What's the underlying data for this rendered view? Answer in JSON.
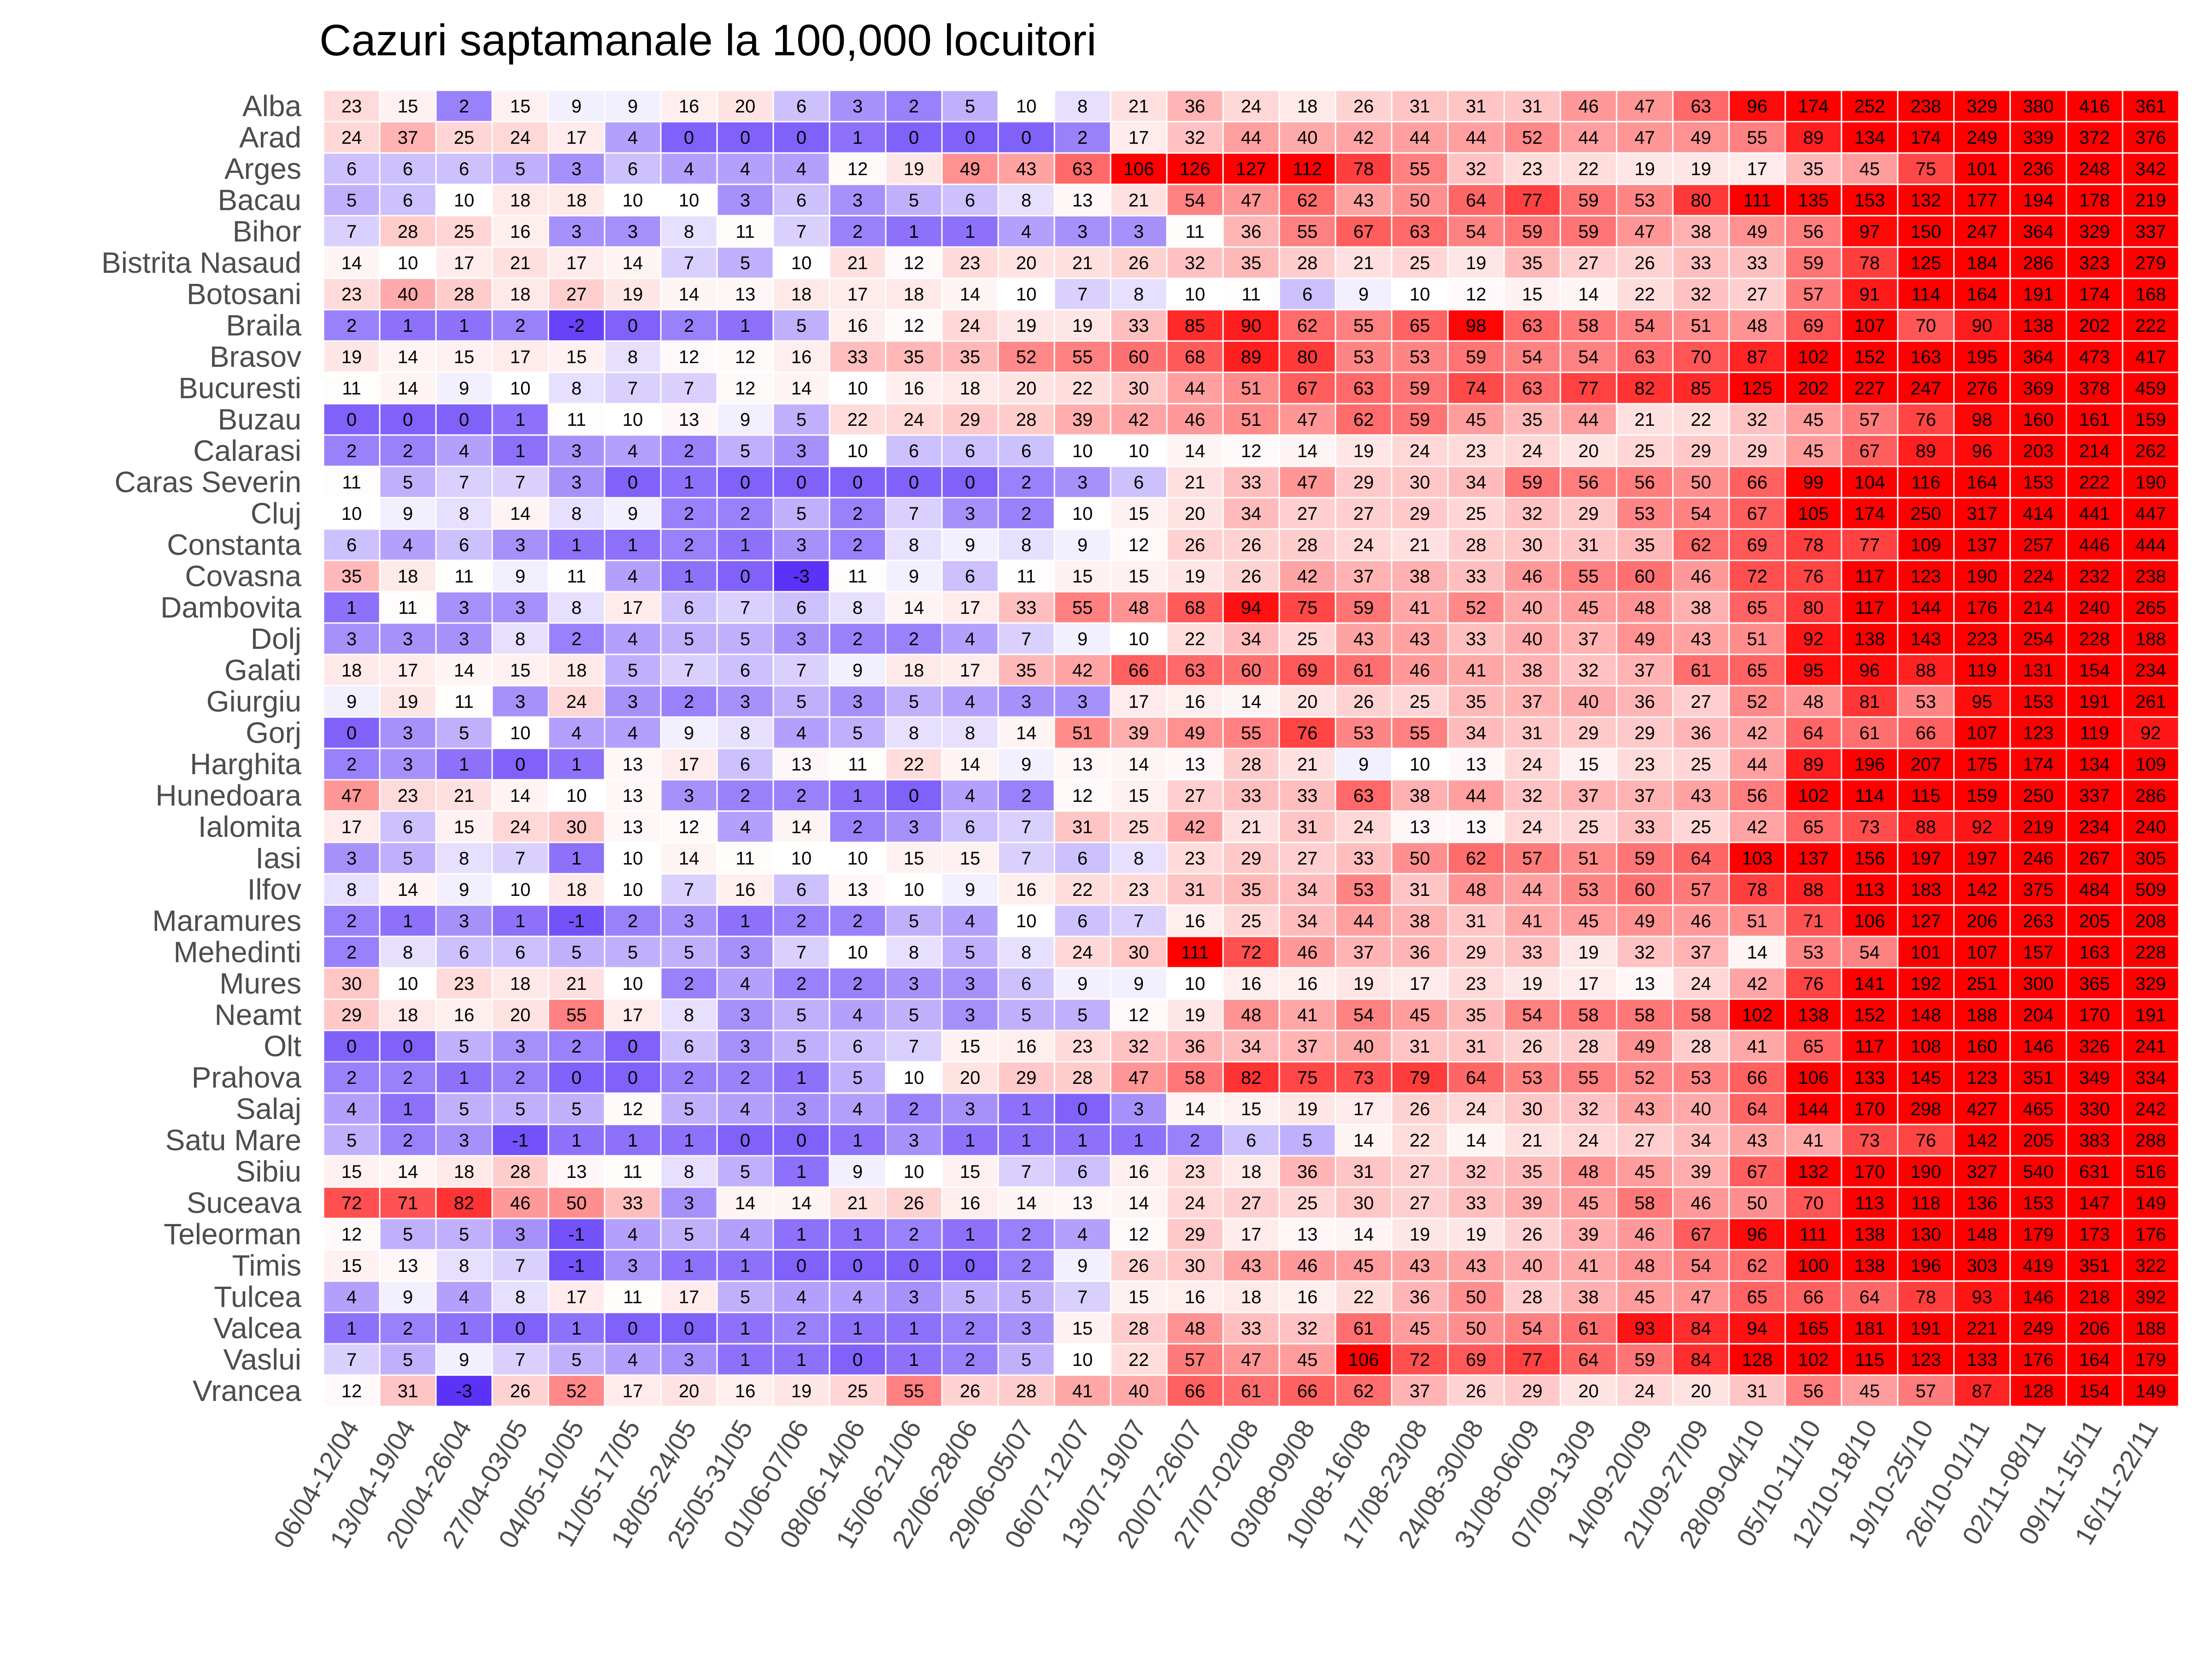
{
  "chart_data": {
    "type": "heatmap",
    "title": "Cazuri saptamanale la 100,000 locuitori",
    "colors": {
      "low": "#5a32f8",
      "mid": "#ffffff",
      "high": "#ff0000"
    },
    "color_scale": {
      "low": -3,
      "mid": 10,
      "high": 100
    },
    "rows": [
      "Alba",
      "Arad",
      "Arges",
      "Bacau",
      "Bihor",
      "Bistrita Nasaud",
      "Botosani",
      "Braila",
      "Brasov",
      "Bucuresti",
      "Buzau",
      "Calarasi",
      "Caras Severin",
      "Cluj",
      "Constanta",
      "Covasna",
      "Dambovita",
      "Dolj",
      "Galati",
      "Giurgiu",
      "Gorj",
      "Harghita",
      "Hunedoara",
      "Ialomita",
      "Iasi",
      "Ilfov",
      "Maramures",
      "Mehedinti",
      "Mures",
      "Neamt",
      "Olt",
      "Prahova",
      "Salaj",
      "Satu Mare",
      "Sibiu",
      "Suceava",
      "Teleorman",
      "Timis",
      "Tulcea",
      "Valcea",
      "Vaslui",
      "Vrancea"
    ],
    "columns": [
      "06/04-12/04",
      "13/04-19/04",
      "20/04-26/04",
      "27/04-03/05",
      "04/05-10/05",
      "11/05-17/05",
      "18/05-24/05",
      "25/05-31/05",
      "01/06-07/06",
      "08/06-14/06",
      "15/06-21/06",
      "22/06-28/06",
      "29/06-05/07",
      "06/07-12/07",
      "13/07-19/07",
      "20/07-26/07",
      "27/07-02/08",
      "03/08-09/08",
      "10/08-16/08",
      "17/08-23/08",
      "24/08-30/08",
      "31/08-06/09",
      "07/09-13/09",
      "14/09-20/09",
      "21/09-27/09",
      "28/09-04/10",
      "05/10-11/10",
      "12/10-18/10",
      "19/10-25/10",
      "26/10-01/11",
      "02/11-08/11",
      "09/11-15/11",
      "16/11-22/11"
    ],
    "values": [
      [
        23,
        15,
        2,
        15,
        9,
        9,
        16,
        20,
        6,
        3,
        2,
        5,
        10,
        8,
        21,
        36,
        24,
        18,
        26,
        31,
        31,
        31,
        46,
        47,
        63,
        96,
        174,
        252,
        238,
        329,
        380,
        416,
        361
      ],
      [
        24,
        37,
        25,
        24,
        17,
        4,
        0,
        0,
        0,
        1,
        0,
        0,
        0,
        2,
        17,
        32,
        44,
        40,
        42,
        44,
        44,
        52,
        44,
        47,
        49,
        55,
        89,
        134,
        174,
        249,
        339,
        372,
        376
      ],
      [
        6,
        6,
        6,
        5,
        3,
        6,
        4,
        4,
        4,
        12,
        19,
        49,
        43,
        63,
        106,
        126,
        127,
        112,
        78,
        55,
        32,
        23,
        22,
        19,
        19,
        17,
        35,
        45,
        75,
        101,
        236,
        248,
        342
      ],
      [
        5,
        6,
        10,
        18,
        18,
        10,
        10,
        3,
        6,
        3,
        5,
        6,
        8,
        13,
        21,
        54,
        47,
        62,
        43,
        50,
        64,
        77,
        59,
        53,
        80,
        111,
        135,
        153,
        132,
        177,
        194,
        178,
        219
      ],
      [
        7,
        28,
        25,
        16,
        3,
        3,
        8,
        11,
        7,
        2,
        1,
        1,
        4,
        3,
        3,
        11,
        36,
        55,
        67,
        63,
        54,
        59,
        59,
        47,
        38,
        49,
        56,
        97,
        150,
        247,
        364,
        329,
        337
      ],
      [
        14,
        10,
        17,
        21,
        17,
        14,
        7,
        5,
        10,
        21,
        12,
        23,
        20,
        21,
        26,
        32,
        35,
        28,
        21,
        25,
        19,
        35,
        27,
        26,
        33,
        33,
        59,
        78,
        125,
        184,
        286,
        323,
        279
      ],
      [
        23,
        40,
        28,
        18,
        27,
        19,
        14,
        13,
        18,
        17,
        18,
        14,
        10,
        7,
        8,
        10,
        11,
        6,
        9,
        10,
        12,
        15,
        14,
        22,
        32,
        27,
        57,
        91,
        114,
        164,
        191,
        174,
        168
      ],
      [
        2,
        1,
        1,
        2,
        -2,
        0,
        2,
        1,
        5,
        16,
        12,
        24,
        19,
        19,
        33,
        85,
        90,
        62,
        55,
        65,
        98,
        63,
        58,
        54,
        51,
        48,
        69,
        107,
        70,
        90,
        138,
        202,
        222
      ],
      [
        19,
        14,
        15,
        17,
        15,
        8,
        12,
        12,
        16,
        33,
        35,
        35,
        52,
        55,
        60,
        68,
        89,
        80,
        53,
        53,
        59,
        54,
        54,
        63,
        70,
        87,
        102,
        152,
        163,
        195,
        364,
        473,
        417
      ],
      [
        11,
        14,
        9,
        10,
        8,
        7,
        7,
        12,
        14,
        10,
        16,
        18,
        20,
        22,
        30,
        44,
        51,
        67,
        63,
        59,
        74,
        63,
        77,
        82,
        85,
        125,
        202,
        227,
        247,
        276,
        369,
        378,
        459
      ],
      [
        0,
        0,
        0,
        1,
        11,
        10,
        13,
        9,
        5,
        22,
        24,
        29,
        28,
        39,
        42,
        46,
        51,
        47,
        62,
        59,
        45,
        35,
        44,
        21,
        22,
        32,
        45,
        57,
        76,
        98,
        160,
        161,
        159
      ],
      [
        2,
        2,
        4,
        1,
        3,
        4,
        2,
        5,
        3,
        10,
        6,
        6,
        6,
        10,
        10,
        14,
        12,
        14,
        19,
        24,
        23,
        24,
        20,
        25,
        29,
        29,
        45,
        67,
        89,
        96,
        203,
        214,
        262
      ],
      [
        11,
        5,
        7,
        7,
        3,
        0,
        1,
        0,
        0,
        0,
        0,
        0,
        2,
        3,
        6,
        21,
        33,
        47,
        29,
        30,
        34,
        59,
        56,
        56,
        50,
        66,
        99,
        104,
        116,
        164,
        153,
        222,
        190
      ],
      [
        10,
        9,
        8,
        14,
        8,
        9,
        2,
        2,
        5,
        2,
        7,
        3,
        2,
        10,
        15,
        20,
        34,
        27,
        27,
        29,
        25,
        32,
        29,
        53,
        54,
        67,
        105,
        174,
        250,
        317,
        414,
        441,
        447
      ],
      [
        6,
        4,
        6,
        3,
        1,
        1,
        2,
        1,
        3,
        2,
        8,
        9,
        8,
        9,
        12,
        26,
        26,
        28,
        24,
        21,
        28,
        30,
        31,
        35,
        62,
        69,
        78,
        77,
        109,
        137,
        257,
        446,
        444
      ],
      [
        35,
        18,
        11,
        9,
        11,
        4,
        1,
        0,
        -3,
        11,
        9,
        6,
        11,
        15,
        15,
        19,
        26,
        42,
        37,
        38,
        33,
        46,
        55,
        60,
        46,
        72,
        76,
        117,
        123,
        190,
        224,
        232,
        238
      ],
      [
        1,
        11,
        3,
        3,
        8,
        17,
        6,
        7,
        6,
        8,
        14,
        17,
        33,
        55,
        48,
        68,
        94,
        75,
        59,
        41,
        52,
        40,
        45,
        48,
        38,
        65,
        80,
        117,
        144,
        176,
        214,
        240,
        265
      ],
      [
        3,
        3,
        3,
        8,
        2,
        4,
        5,
        5,
        3,
        2,
        2,
        4,
        7,
        9,
        10,
        22,
        34,
        25,
        43,
        43,
        33,
        40,
        37,
        49,
        43,
        51,
        92,
        138,
        143,
        223,
        254,
        228,
        188
      ],
      [
        18,
        17,
        14,
        15,
        18,
        5,
        7,
        6,
        7,
        9,
        18,
        17,
        35,
        42,
        66,
        63,
        60,
        69,
        61,
        46,
        41,
        38,
        32,
        37,
        61,
        65,
        95,
        96,
        88,
        119,
        131,
        154,
        234
      ],
      [
        9,
        19,
        11,
        3,
        24,
        3,
        2,
        3,
        5,
        3,
        5,
        4,
        3,
        3,
        17,
        16,
        14,
        20,
        26,
        25,
        35,
        37,
        40,
        36,
        27,
        52,
        48,
        81,
        53,
        95,
        153,
        191,
        261
      ],
      [
        0,
        3,
        5,
        10,
        4,
        4,
        9,
        8,
        4,
        5,
        8,
        8,
        14,
        51,
        39,
        49,
        55,
        76,
        53,
        55,
        34,
        31,
        29,
        29,
        36,
        42,
        64,
        61,
        66,
        107,
        123,
        119,
        92
      ],
      [
        2,
        3,
        1,
        0,
        1,
        13,
        17,
        6,
        13,
        11,
        22,
        14,
        9,
        13,
        14,
        13,
        28,
        21,
        9,
        10,
        13,
        24,
        15,
        23,
        25,
        44,
        89,
        196,
        207,
        175,
        174,
        134,
        109
      ],
      [
        47,
        23,
        21,
        14,
        10,
        13,
        3,
        2,
        2,
        1,
        0,
        4,
        2,
        12,
        15,
        27,
        33,
        33,
        63,
        38,
        44,
        32,
        37,
        37,
        43,
        56,
        102,
        114,
        115,
        159,
        250,
        337,
        286
      ],
      [
        17,
        6,
        15,
        24,
        30,
        13,
        12,
        4,
        14,
        2,
        3,
        6,
        7,
        31,
        25,
        42,
        21,
        31,
        24,
        13,
        13,
        24,
        25,
        33,
        25,
        42,
        65,
        73,
        88,
        92,
        219,
        234,
        240
      ],
      [
        3,
        5,
        8,
        7,
        1,
        10,
        14,
        11,
        10,
        10,
        15,
        15,
        7,
        6,
        8,
        23,
        29,
        27,
        33,
        50,
        62,
        57,
        51,
        59,
        64,
        103,
        137,
        156,
        197,
        197,
        246,
        267,
        305
      ],
      [
        8,
        14,
        9,
        10,
        18,
        10,
        7,
        16,
        6,
        13,
        10,
        9,
        16,
        22,
        23,
        31,
        35,
        34,
        53,
        31,
        48,
        44,
        53,
        60,
        57,
        78,
        88,
        113,
        183,
        142,
        375,
        484,
        509
      ],
      [
        2,
        1,
        3,
        1,
        -1,
        2,
        3,
        1,
        2,
        2,
        5,
        4,
        10,
        6,
        7,
        16,
        25,
        34,
        44,
        38,
        31,
        41,
        45,
        49,
        46,
        51,
        71,
        106,
        127,
        206,
        263,
        205,
        208
      ],
      [
        2,
        8,
        6,
        6,
        5,
        5,
        5,
        3,
        7,
        10,
        8,
        5,
        8,
        24,
        30,
        111,
        72,
        46,
        37,
        36,
        29,
        33,
        19,
        32,
        37,
        14,
        53,
        54,
        101,
        107,
        157,
        163,
        228
      ],
      [
        30,
        10,
        23,
        18,
        21,
        10,
        2,
        4,
        2,
        2,
        3,
        3,
        6,
        9,
        9,
        10,
        16,
        16,
        19,
        17,
        23,
        19,
        17,
        13,
        24,
        42,
        76,
        141,
        192,
        251,
        300,
        365,
        329
      ],
      [
        29,
        18,
        16,
        20,
        55,
        17,
        8,
        3,
        5,
        4,
        5,
        3,
        5,
        5,
        12,
        19,
        48,
        41,
        54,
        45,
        35,
        54,
        58,
        58,
        58,
        102,
        138,
        152,
        148,
        188,
        204,
        170,
        191
      ],
      [
        0,
        0,
        5,
        3,
        2,
        0,
        6,
        3,
        5,
        6,
        7,
        15,
        16,
        23,
        32,
        36,
        34,
        37,
        40,
        31,
        31,
        26,
        28,
        49,
        28,
        41,
        65,
        117,
        108,
        160,
        146,
        326,
        241
      ],
      [
        2,
        2,
        1,
        2,
        0,
        0,
        2,
        2,
        1,
        5,
        10,
        20,
        29,
        28,
        47,
        58,
        82,
        75,
        73,
        79,
        64,
        53,
        55,
        52,
        53,
        66,
        106,
        133,
        145,
        123,
        351,
        349,
        334
      ],
      [
        4,
        1,
        5,
        5,
        5,
        12,
        5,
        4,
        3,
        4,
        2,
        3,
        1,
        0,
        3,
        14,
        15,
        19,
        17,
        26,
        24,
        30,
        32,
        43,
        40,
        64,
        144,
        170,
        298,
        427,
        465,
        330,
        242
      ],
      [
        5,
        2,
        3,
        -1,
        1,
        1,
        1,
        0,
        0,
        1,
        3,
        1,
        1,
        1,
        1,
        2,
        6,
        5,
        14,
        22,
        14,
        21,
        24,
        27,
        34,
        43,
        41,
        73,
        76,
        142,
        205,
        383,
        288
      ],
      [
        15,
        14,
        18,
        28,
        13,
        11,
        8,
        5,
        1,
        9,
        10,
        15,
        7,
        6,
        16,
        23,
        18,
        36,
        31,
        27,
        32,
        35,
        48,
        45,
        39,
        67,
        132,
        170,
        190,
        327,
        540,
        631,
        516
      ],
      [
        72,
        71,
        82,
        46,
        50,
        33,
        3,
        14,
        14,
        21,
        26,
        16,
        14,
        13,
        14,
        24,
        27,
        25,
        30,
        27,
        33,
        39,
        45,
        58,
        46,
        50,
        70,
        113,
        118,
        136,
        153,
        147,
        149
      ],
      [
        12,
        5,
        5,
        3,
        -1,
        4,
        5,
        4,
        1,
        1,
        2,
        1,
        2,
        4,
        12,
        29,
        17,
        13,
        14,
        19,
        19,
        26,
        39,
        46,
        67,
        96,
        111,
        138,
        130,
        148,
        179,
        173,
        176
      ],
      [
        15,
        13,
        8,
        7,
        -1,
        3,
        1,
        1,
        0,
        0,
        0,
        0,
        2,
        9,
        26,
        30,
        43,
        46,
        45,
        43,
        43,
        40,
        41,
        48,
        54,
        62,
        100,
        138,
        196,
        303,
        419,
        351,
        322
      ],
      [
        4,
        9,
        4,
        8,
        17,
        11,
        17,
        5,
        4,
        4,
        3,
        5,
        5,
        7,
        15,
        16,
        18,
        16,
        22,
        36,
        50,
        28,
        38,
        45,
        47,
        65,
        66,
        64,
        78,
        93,
        146,
        218,
        392
      ],
      [
        1,
        2,
        1,
        0,
        1,
        0,
        0,
        1,
        2,
        1,
        1,
        2,
        3,
        15,
        28,
        48,
        33,
        32,
        61,
        45,
        50,
        54,
        61,
        93,
        84,
        94,
        165,
        181,
        191,
        221,
        249,
        206,
        188
      ],
      [
        7,
        5,
        9,
        7,
        5,
        4,
        3,
        1,
        1,
        0,
        1,
        2,
        5,
        10,
        22,
        57,
        47,
        45,
        106,
        72,
        69,
        77,
        64,
        59,
        84,
        128,
        102,
        115,
        123,
        133,
        176,
        164,
        179
      ],
      [
        12,
        31,
        -3,
        26,
        52,
        17,
        20,
        16,
        19,
        25,
        55,
        26,
        28,
        41,
        40,
        66,
        61,
        66,
        62,
        37,
        26,
        29,
        20,
        24,
        20,
        31,
        56,
        45,
        57,
        87,
        128,
        154,
        149
      ]
    ]
  }
}
